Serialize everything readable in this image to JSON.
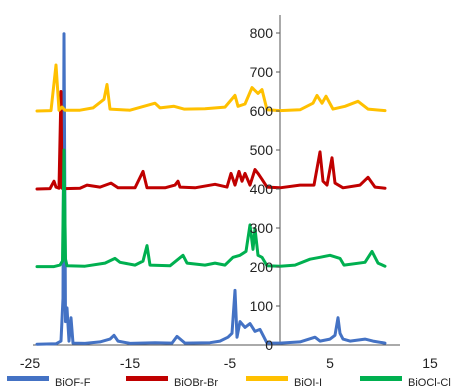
{
  "chart_data": {
    "type": "line",
    "title": "",
    "xlabel": "",
    "ylabel": "",
    "xlim": [
      -25,
      15
    ],
    "ylim": [
      0,
      800
    ],
    "grid": false,
    "legend_position": "bottom",
    "x_ticks": [
      -25,
      -15,
      -5,
      5,
      15
    ],
    "y_ticks": [
      0,
      100,
      200,
      300,
      400,
      500,
      600,
      700,
      800
    ],
    "series": [
      {
        "name": "BiOF-F",
        "color": "#4472C4",
        "points": [
          [
            -24.3,
            2
          ],
          [
            -22.4,
            3
          ],
          [
            -21.9,
            10
          ],
          [
            -21.7,
            120
          ],
          [
            -21.6,
            798
          ],
          [
            -21.45,
            60
          ],
          [
            -21.3,
            95
          ],
          [
            -21.1,
            10
          ],
          [
            -20.9,
            70
          ],
          [
            -20.7,
            5
          ],
          [
            -19.5,
            4
          ],
          [
            -18,
            8
          ],
          [
            -17,
            15
          ],
          [
            -16.6,
            25
          ],
          [
            -16.2,
            10
          ],
          [
            -15,
            4
          ],
          [
            -12.5,
            6
          ],
          [
            -10.8,
            5
          ],
          [
            -10.3,
            22
          ],
          [
            -9.5,
            5
          ],
          [
            -7,
            6
          ],
          [
            -6,
            10
          ],
          [
            -5.2,
            20
          ],
          [
            -4.8,
            30
          ],
          [
            -4.5,
            140
          ],
          [
            -4.3,
            20
          ],
          [
            -4.0,
            60
          ],
          [
            -3.5,
            45
          ],
          [
            -3.0,
            55
          ],
          [
            -2.5,
            35
          ],
          [
            -2.0,
            40
          ],
          [
            -1.6,
            20
          ],
          [
            -1.3,
            5
          ],
          [
            0,
            5
          ],
          [
            2,
            8
          ],
          [
            3.5,
            20
          ],
          [
            4,
            10
          ],
          [
            5,
            15
          ],
          [
            5.5,
            25
          ],
          [
            5.8,
            70
          ],
          [
            6.0,
            30
          ],
          [
            6.3,
            15
          ],
          [
            7,
            10
          ],
          [
            8.5,
            15
          ],
          [
            9.3,
            10
          ],
          [
            10.5,
            5
          ]
        ]
      },
      {
        "name": "BiOBr-Br",
        "color": "#C00000",
        "points": [
          [
            -24.3,
            400
          ],
          [
            -23.0,
            401
          ],
          [
            -22.6,
            420
          ],
          [
            -22.4,
            405
          ],
          [
            -22.1,
            402
          ],
          [
            -21.9,
            650
          ],
          [
            -21.8,
            402
          ],
          [
            -21.5,
            401
          ],
          [
            -20,
            402
          ],
          [
            -19.3,
            410
          ],
          [
            -18,
            405
          ],
          [
            -16.9,
            415
          ],
          [
            -16.2,
            403
          ],
          [
            -14.5,
            403
          ],
          [
            -13.7,
            445
          ],
          [
            -13.3,
            403
          ],
          [
            -11.5,
            403
          ],
          [
            -10.5,
            410
          ],
          [
            -10.2,
            420
          ],
          [
            -10.0,
            405
          ],
          [
            -8.5,
            403
          ],
          [
            -6.5,
            412
          ],
          [
            -5.3,
            405
          ],
          [
            -4.9,
            440
          ],
          [
            -4.5,
            410
          ],
          [
            -4.1,
            445
          ],
          [
            -3.8,
            420
          ],
          [
            -3.5,
            440
          ],
          [
            -3.0,
            410
          ],
          [
            -2.5,
            450
          ],
          [
            -2.2,
            440
          ],
          [
            -1.8,
            425
          ],
          [
            -1.3,
            405
          ],
          [
            0,
            403
          ],
          [
            2,
            410
          ],
          [
            3.4,
            410
          ],
          [
            4.0,
            495
          ],
          [
            4.3,
            420
          ],
          [
            4.7,
            410
          ],
          [
            5.2,
            480
          ],
          [
            5.5,
            415
          ],
          [
            6.3,
            403
          ],
          [
            8,
            410
          ],
          [
            8.8,
            430
          ],
          [
            9.5,
            405
          ],
          [
            10.5,
            402
          ]
        ]
      },
      {
        "name": "BiOI-I",
        "color": "#FFC000",
        "points": [
          [
            -24.3,
            600
          ],
          [
            -22.9,
            601
          ],
          [
            -22.4,
            718
          ],
          [
            -22.1,
            602
          ],
          [
            -21.8,
            610
          ],
          [
            -21.5,
            602
          ],
          [
            -20,
            602
          ],
          [
            -18.7,
            608
          ],
          [
            -17.6,
            630
          ],
          [
            -17.3,
            668
          ],
          [
            -17.0,
            605
          ],
          [
            -15,
            602
          ],
          [
            -12.5,
            620
          ],
          [
            -12.0,
            608
          ],
          [
            -10.6,
            612
          ],
          [
            -9.6,
            605
          ],
          [
            -7.5,
            606
          ],
          [
            -5.5,
            610
          ],
          [
            -4.5,
            640
          ],
          [
            -4.2,
            612
          ],
          [
            -3.5,
            618
          ],
          [
            -2.8,
            660
          ],
          [
            -2.2,
            645
          ],
          [
            -1.8,
            655
          ],
          [
            -1.3,
            603
          ],
          [
            0,
            601
          ],
          [
            2,
            603
          ],
          [
            3.3,
            620
          ],
          [
            3.7,
            640
          ],
          [
            4.2,
            620
          ],
          [
            4.6,
            638
          ],
          [
            5.3,
            605
          ],
          [
            6.5,
            612
          ],
          [
            7.8,
            625
          ],
          [
            8.8,
            605
          ],
          [
            10.5,
            601
          ]
        ]
      },
      {
        "name": "BiOCl-Cl",
        "color": "#00B050",
        "points": [
          [
            -24.3,
            201
          ],
          [
            -22.6,
            201
          ],
          [
            -22.0,
            205
          ],
          [
            -21.75,
            215
          ],
          [
            -21.6,
            500
          ],
          [
            -21.45,
            220
          ],
          [
            -21.3,
            203
          ],
          [
            -19.5,
            202
          ],
          [
            -17.5,
            210
          ],
          [
            -16.5,
            222
          ],
          [
            -16.0,
            212
          ],
          [
            -14.5,
            205
          ],
          [
            -13.7,
            215
          ],
          [
            -13.3,
            255
          ],
          [
            -13.0,
            205
          ],
          [
            -11.0,
            203
          ],
          [
            -9.7,
            230
          ],
          [
            -9.3,
            210
          ],
          [
            -7.5,
            205
          ],
          [
            -6.5,
            210
          ],
          [
            -5.5,
            205
          ],
          [
            -4.7,
            225
          ],
          [
            -4.0,
            230
          ],
          [
            -3.4,
            240
          ],
          [
            -3.0,
            308
          ],
          [
            -2.7,
            245
          ],
          [
            -2.5,
            298
          ],
          [
            -2.2,
            230
          ],
          [
            -1.8,
            225
          ],
          [
            -1.3,
            203
          ],
          [
            0,
            202
          ],
          [
            1.5,
            205
          ],
          [
            3.0,
            220
          ],
          [
            4.0,
            225
          ],
          [
            5.0,
            230
          ],
          [
            6.0,
            222
          ],
          [
            6.4,
            205
          ],
          [
            8.5,
            212
          ],
          [
            9.2,
            240
          ],
          [
            9.8,
            210
          ],
          [
            10.5,
            202
          ]
        ]
      }
    ]
  }
}
